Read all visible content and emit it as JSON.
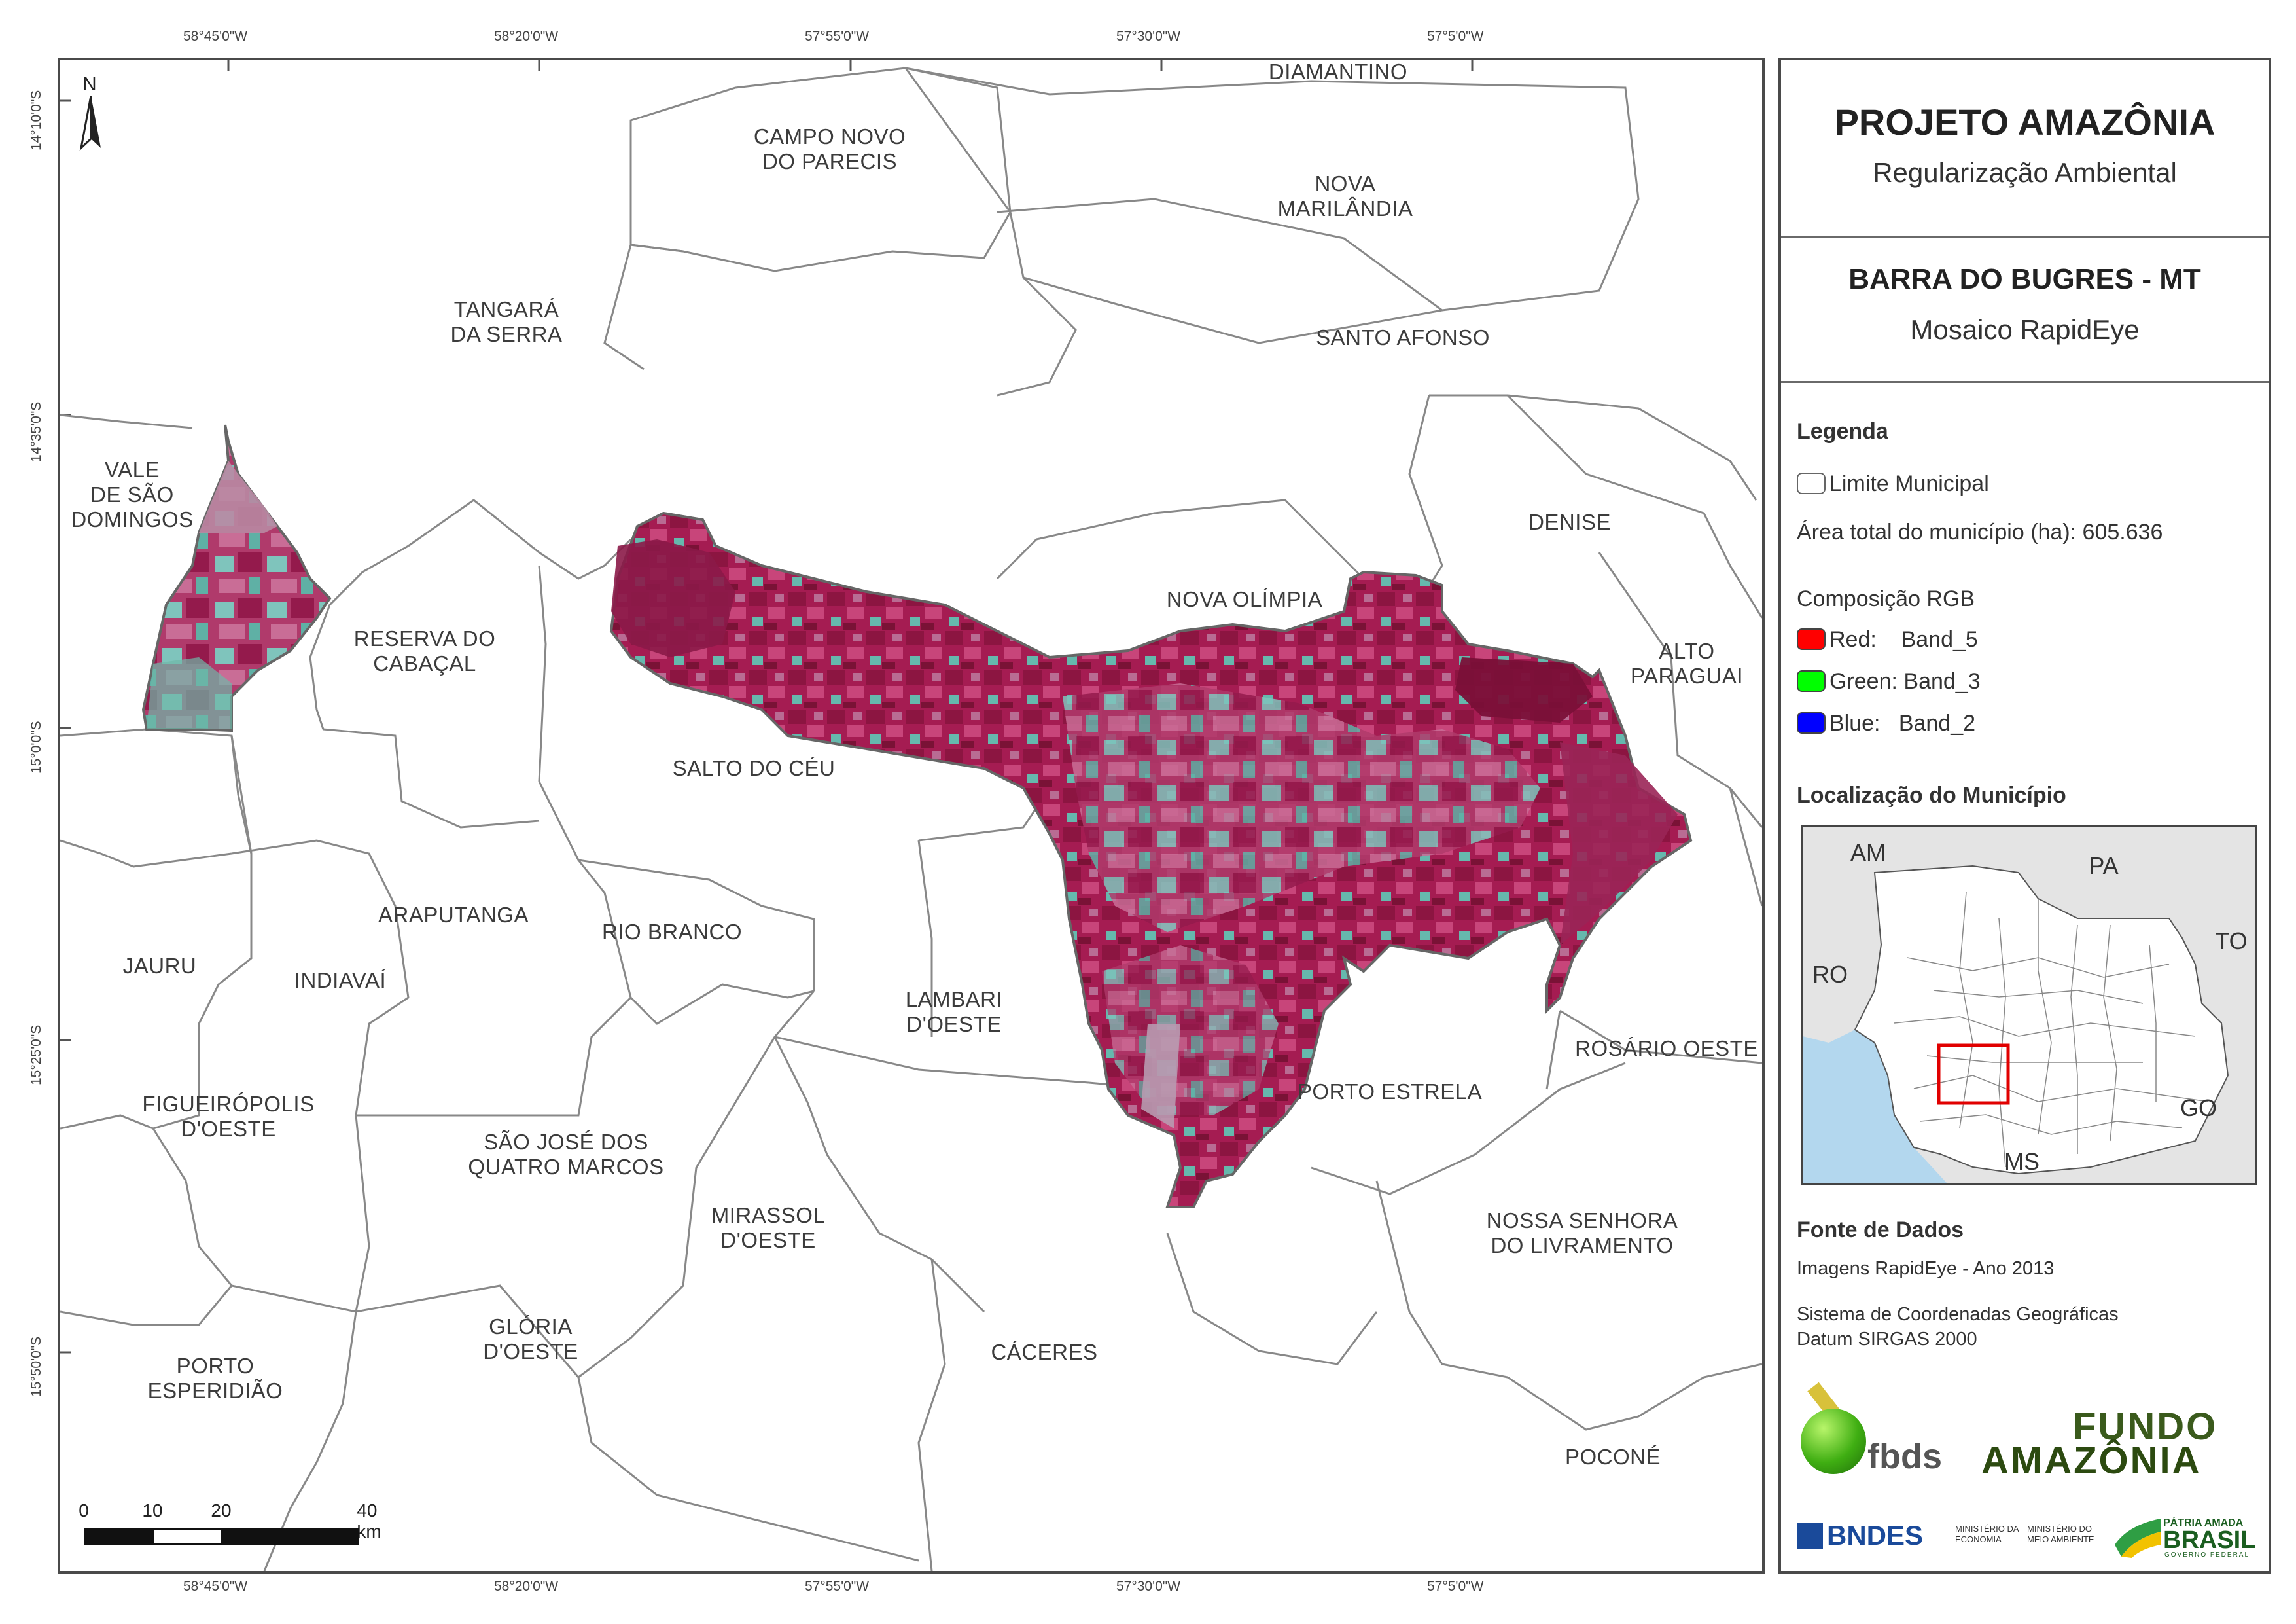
{
  "map": {
    "north_label": "N",
    "top_coords": [
      "58°45'0\"W",
      "58°20'0\"W",
      "57°55'0\"W",
      "57°30'0\"W",
      "57°5'0\"W"
    ],
    "bottom_coords": [
      "58°45'0\"W",
      "58°20'0\"W",
      "57°55'0\"W",
      "57°30'0\"W",
      "57°5'0\"W"
    ],
    "left_coords": [
      "14°10'0\"S",
      "14°35'0\"S",
      "15°0'0\"S",
      "15°25'0\"S",
      "15°50'0\"S"
    ],
    "municipalities": {
      "diamantino": "DIAMANTINO",
      "campo_novo": "CAMPO NOVO\nDO PARECIS",
      "nova_marilandia": "NOVA\nMARILÂNDIA",
      "tangara": "TANGARÁ\nDA SERRA",
      "santo_afonso": "SANTO AFONSO",
      "vale_sao_domingos": "VALE\nDE SÃO\nDOMINGOS",
      "denise": "DENISE",
      "nova_olimpia": "NOVA OLÍMPIA",
      "reserva_cabacal": "RESERVA DO\nCABAÇAL",
      "alto_paraguai": "ALTO\nPARAGUAI",
      "salto_do_ceu": "SALTO DO CÉU",
      "araputanga": "ARAPUTANGA",
      "rio_branco": "RIO BRANCO",
      "jauru": "JAURU",
      "indiavai": "INDIAVAÍ",
      "lambari": "LAMBARI\nD'OESTE",
      "rosario_oeste": "ROSÁRIO OESTE",
      "figueiropolis": "FIGUEIRÓPOLIS\nD'OESTE",
      "porto_estrela": "PORTO ESTRELA",
      "sao_jose": "SÃO JOSÉ DOS\nQUATRO MARCOS",
      "mirassol": "MIRASSOL\nD'OESTE",
      "nossa_senhora": "NOSSA SENHORA\nDO LIVRAMENTO",
      "gloria": "GLÓRIA\nD'OESTE",
      "caceres": "CÁCERES",
      "porto_esperidiao": "PORTO\nESPERIDIÃO",
      "pocone": "POCONÉ"
    },
    "scale": {
      "labels": [
        "0",
        "10",
        "20",
        "40 km"
      ]
    }
  },
  "panel": {
    "title": "PROJETO AMAZÔNIA",
    "subtitle": "Regularização Ambiental",
    "municipality_title": "BARRA DO BUGRES - MT",
    "mosaic": "Mosaico RapidEye",
    "legend_title": "Legenda",
    "legend_limit": "Limite Municipal",
    "area_total": "Área total do município (ha): 605.636",
    "rgb_title": "Composição RGB",
    "rgb": [
      {
        "label": "Red:    Band_5",
        "color": "#ff0000"
      },
      {
        "label": "Green: Band_3",
        "color": "#00ff00"
      },
      {
        "label": "Blue:   Band_2",
        "color": "#0000ff"
      }
    ],
    "location_title": "Localização do Município",
    "location_labels": {
      "am": "AM",
      "pa": "PA",
      "ro": "RO",
      "to": "TO",
      "go": "GO",
      "ms": "MS"
    },
    "sources_title": "Fonte de Dados",
    "source_images": "Imagens RapidEye - Ano 2013",
    "coord_system": "Sistema de Coordenadas Geográficas",
    "datum": "Datum SIRGAS 2000",
    "logos": {
      "fbds": "fbds",
      "fundo_line1": "FUNDO",
      "fundo_line2": "AMAZÔNIA",
      "bndes": "BNDES",
      "min_economia": "MINISTÉRIO DA\nECONOMIA",
      "min_ambiente": "MINISTÉRIO DO\nMEIO AMBIENTE",
      "patria": "PÁTRIA AMADA",
      "brasil": "BRASIL",
      "governo": "GOVERNO FEDERAL"
    }
  }
}
